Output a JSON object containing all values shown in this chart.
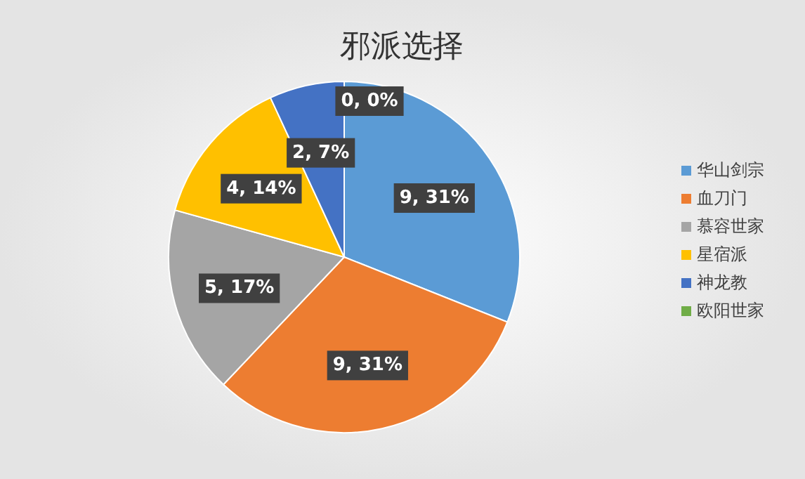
{
  "chart_data": {
    "type": "pie",
    "title": "邪派选择",
    "categories": [
      "华山剑宗",
      "血刀门",
      "慕容世家",
      "星宿派",
      "神龙教",
      "欧阳世家"
    ],
    "values": [
      9,
      9,
      5,
      4,
      2,
      0
    ],
    "colors": [
      "#5b9bd5",
      "#ed7d31",
      "#a5a5a5",
      "#ffc000",
      "#4472c4",
      "#70ad47"
    ],
    "value_labels": [
      "9, 31%",
      "9, 31%",
      "5, 17%",
      "4, 14%",
      "2, 7%",
      "0, 0%"
    ],
    "legend": "right"
  }
}
